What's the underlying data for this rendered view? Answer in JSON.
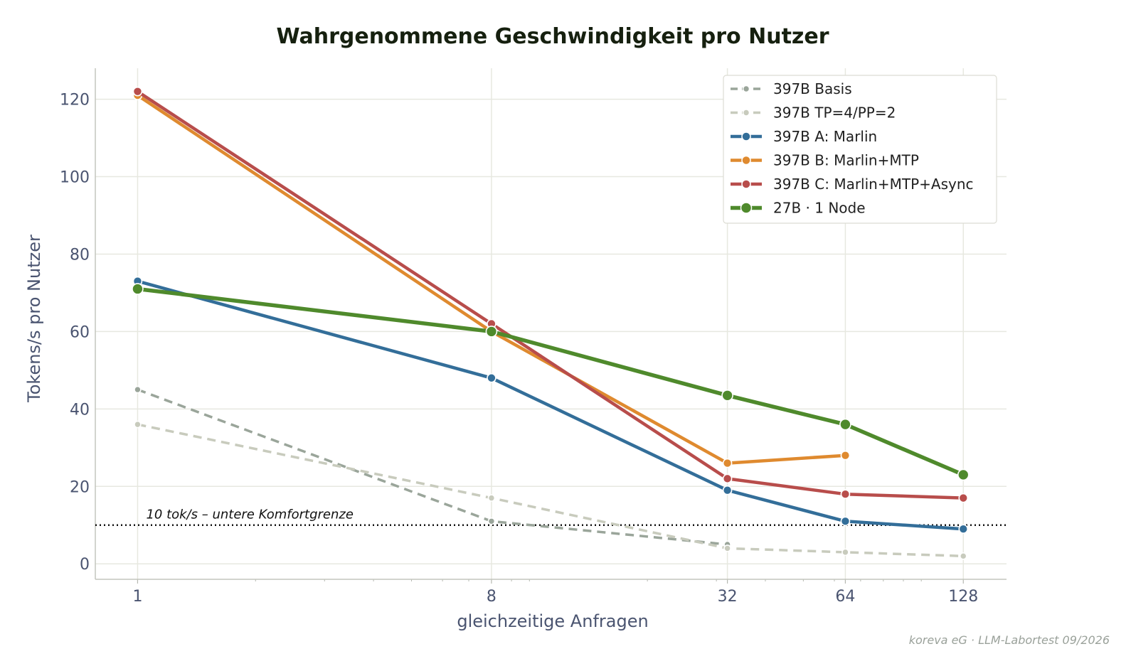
{
  "chart_data": {
    "type": "line",
    "title": "Wahrgenommene Geschwindigkeit pro Nutzer",
    "xlabel": "gleichzeitige Anfragen",
    "ylabel": "Tokens/s pro Nutzer",
    "x_scale": "log2",
    "x_ticks": [
      1,
      8,
      32,
      64,
      128
    ],
    "y_ticks": [
      0,
      20,
      40,
      60,
      80,
      100,
      120
    ],
    "xlim": [
      0.78,
      165
    ],
    "ylim": [
      -4,
      128
    ],
    "grid": true,
    "legend_position": "top-right",
    "series": [
      {
        "name": "397B Basis",
        "color": "#9aa59a",
        "style": "dashed",
        "marker_size": "small",
        "x": [
          1,
          8,
          32
        ],
        "y": [
          45,
          11,
          5
        ]
      },
      {
        "name": "397B TP=4/PP=2",
        "color": "#c8cbbd",
        "style": "dashed",
        "marker_size": "small",
        "x": [
          1,
          8,
          32,
          64,
          128
        ],
        "y": [
          36,
          17,
          4,
          3,
          2
        ]
      },
      {
        "name": "397B A: Marlin",
        "color": "#336e99",
        "style": "solid",
        "marker_size": "medium",
        "x": [
          1,
          8,
          32,
          64,
          128
        ],
        "y": [
          73,
          48,
          19,
          11,
          9
        ]
      },
      {
        "name": "397B B: Marlin+MTP",
        "color": "#df8a2f",
        "style": "solid",
        "marker_size": "medium",
        "x": [
          1,
          8,
          32,
          64
        ],
        "y": [
          121,
          60,
          26,
          28
        ]
      },
      {
        "name": "397B C: Marlin+MTP+Async",
        "color": "#b84d4b",
        "style": "solid",
        "marker_size": "medium",
        "x": [
          1,
          8,
          32,
          64,
          128
        ],
        "y": [
          122,
          62,
          22,
          18,
          17
        ]
      },
      {
        "name": "27B · 1 Node",
        "color": "#4f8a2c",
        "style": "solid",
        "marker_size": "large",
        "x": [
          1,
          8,
          32,
          64,
          128
        ],
        "y": [
          71,
          60,
          43.5,
          36,
          23
        ]
      }
    ],
    "reference_line": {
      "y": 10,
      "label": "10 tok/s – untere Komfortgrenze"
    }
  },
  "footer": "koreva eG · LLM-Labortest 09/2026"
}
